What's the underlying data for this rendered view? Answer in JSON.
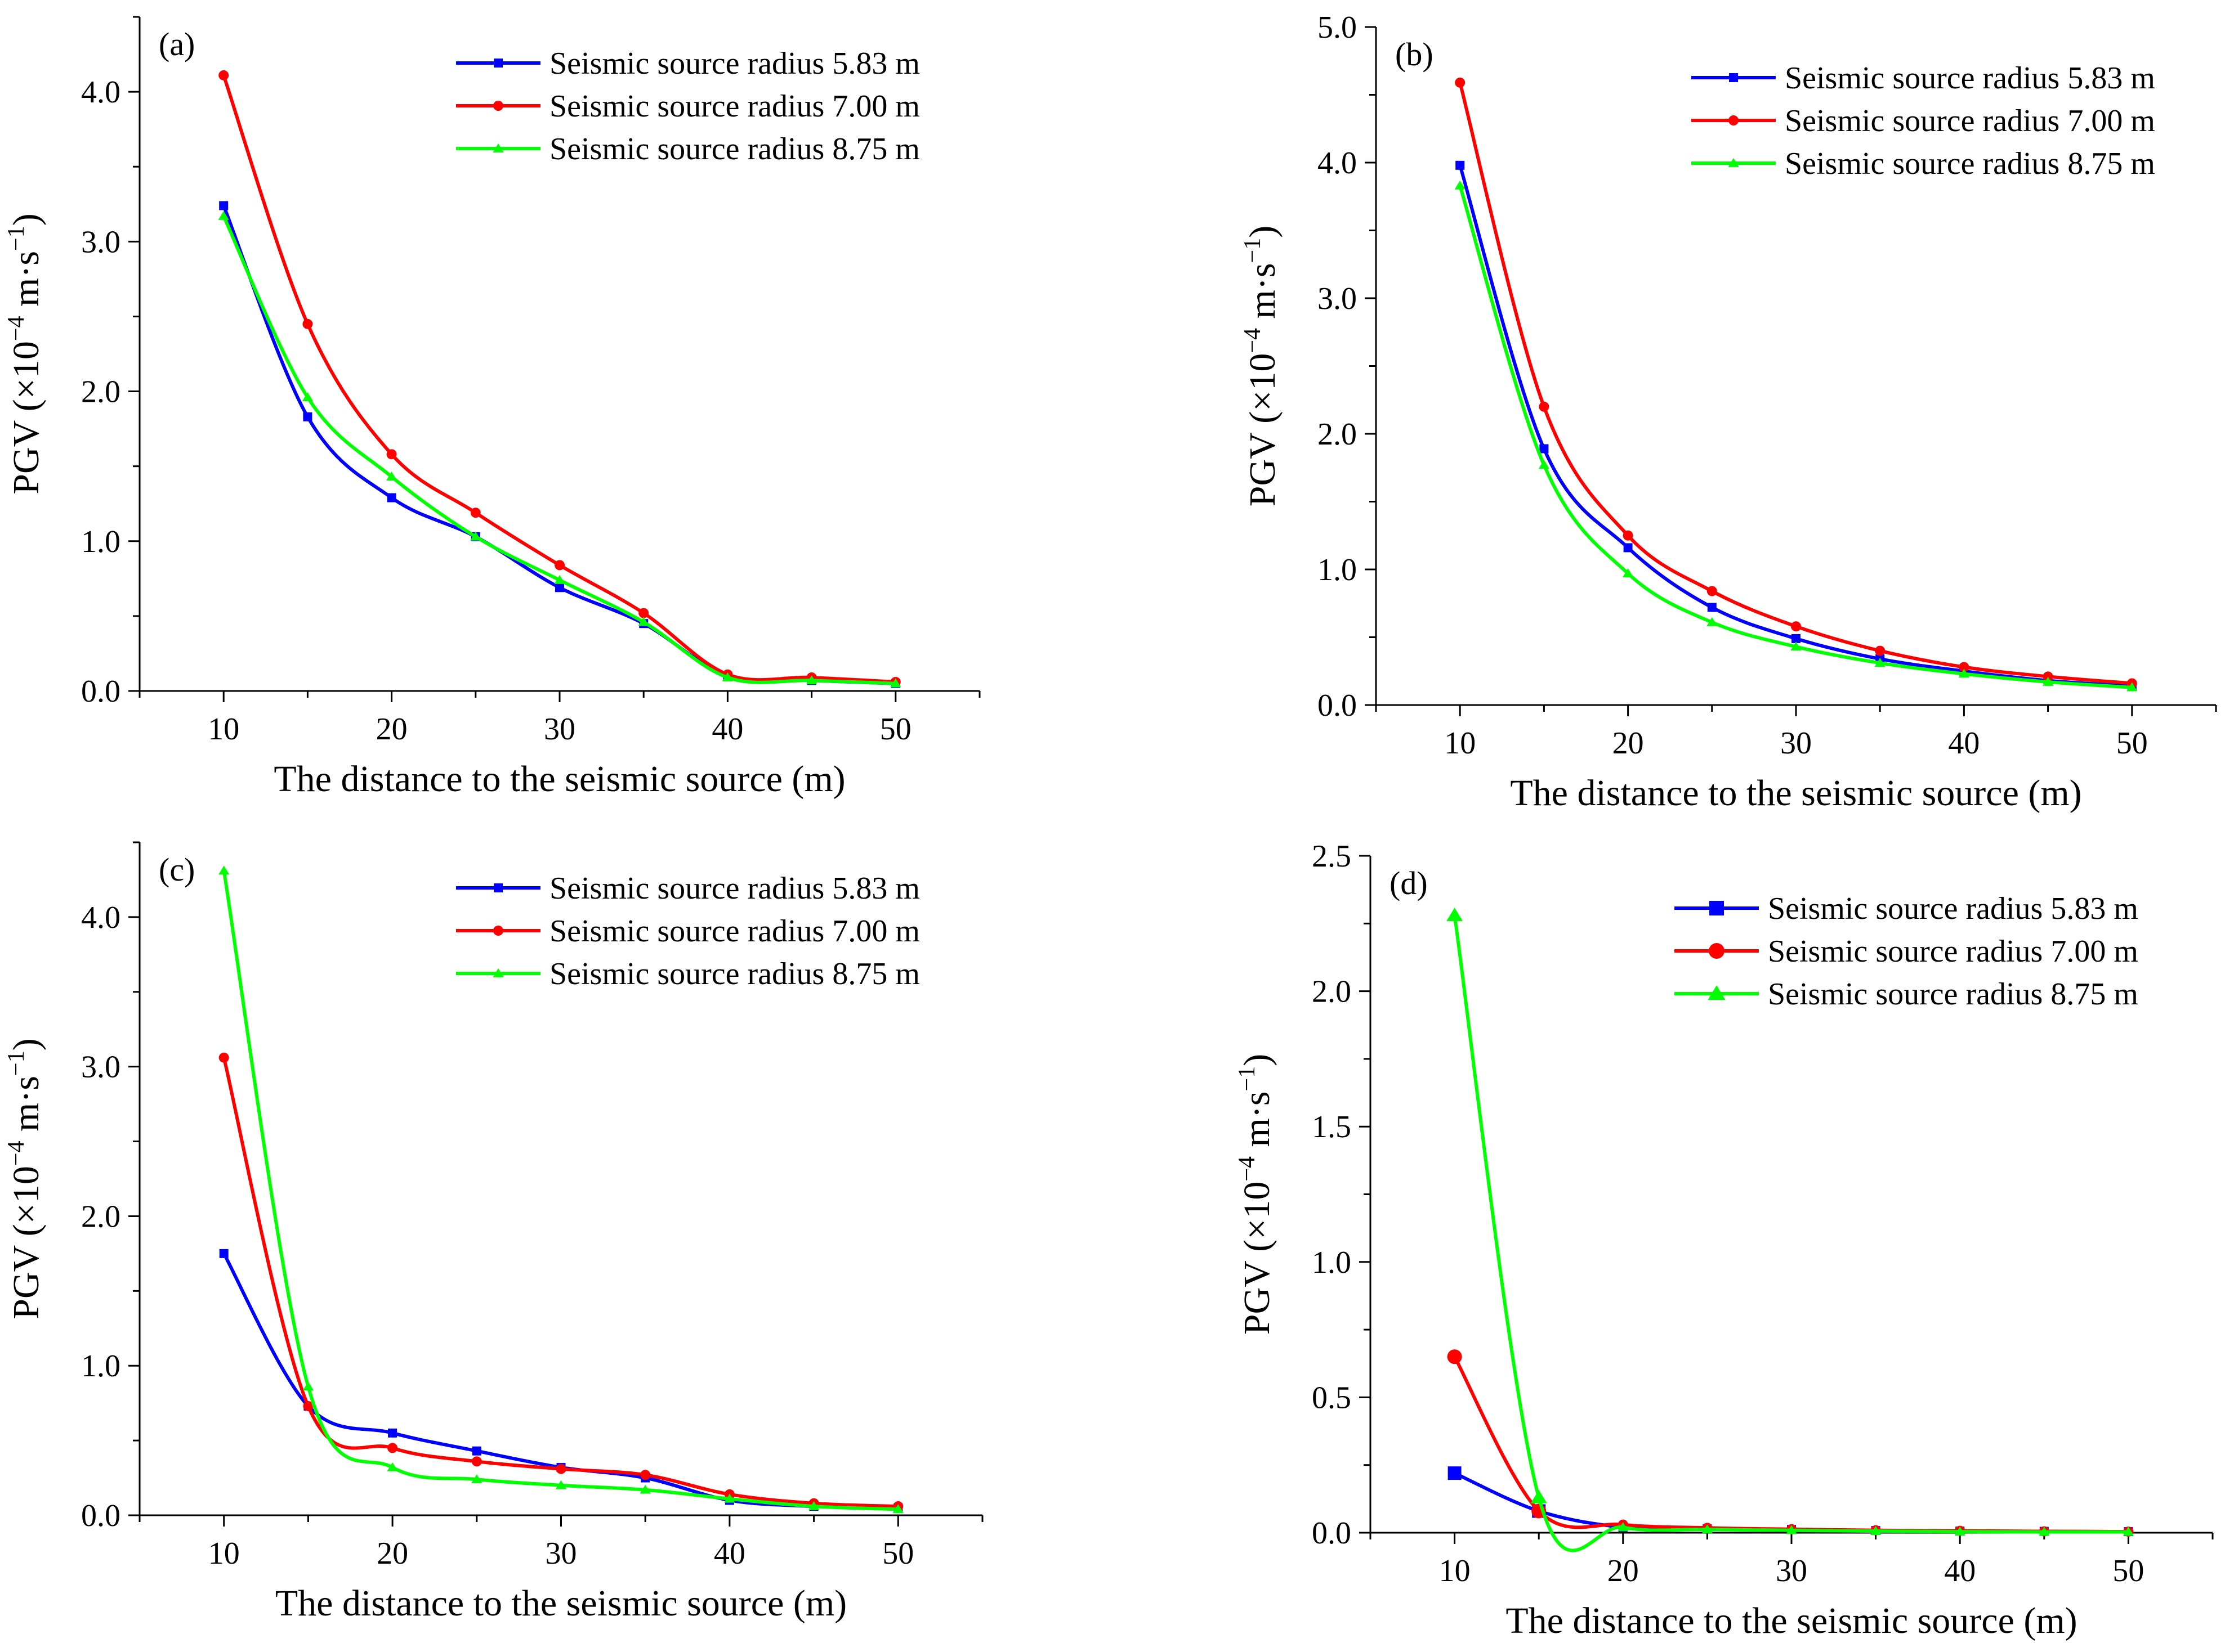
{
  "chart_data": [
    {
      "panel_label": "(a)",
      "type": "line",
      "xlabel": "The distance to the seismic source (m)",
      "ylabel": {
        "prefix": "PGV (×10",
        "exponent1": "−4",
        "middle": " m·s",
        "exponent2": "−1",
        "suffix": ")"
      },
      "xlim": [
        5,
        55
      ],
      "ylim": [
        0,
        4.5
      ],
      "xticks": [
        10,
        20,
        30,
        40,
        50
      ],
      "xtick_labels": [
        "10",
        "20",
        "30",
        "40",
        "50"
      ],
      "yticks": [
        0,
        1,
        2,
        3,
        4
      ],
      "ytick_labels": [
        "0.0",
        "1.0",
        "2.0",
        "3.0",
        "4.0"
      ],
      "x": [
        10,
        15,
        20,
        25,
        30,
        35,
        40,
        45,
        50
      ],
      "legend_position": "top-right",
      "series": [
        {
          "name": "Seismic source radius 5.83 m",
          "color": "#0000ff",
          "marker": "square",
          "values": [
            3.24,
            1.83,
            1.29,
            1.03,
            0.69,
            0.45,
            0.1,
            0.07,
            0.05
          ]
        },
        {
          "name": "Seismic source radius 7.00 m",
          "color": "#ff0000",
          "marker": "circle",
          "values": [
            4.11,
            2.45,
            1.58,
            1.19,
            0.84,
            0.52,
            0.11,
            0.09,
            0.06
          ]
        },
        {
          "name": "Seismic source radius 8.75 m",
          "color": "#00ff00",
          "marker": "triangle",
          "values": [
            3.17,
            1.96,
            1.43,
            1.03,
            0.74,
            0.46,
            0.09,
            0.07,
            0.05
          ]
        }
      ]
    },
    {
      "panel_label": "(b)",
      "type": "line",
      "xlabel": "The distance to the seismic source (m)",
      "ylabel": {
        "prefix": "PGV (×10",
        "exponent1": "−4",
        "middle": " m·s",
        "exponent2": "−1",
        "suffix": ")"
      },
      "xlim": [
        5,
        55
      ],
      "ylim": [
        0,
        5
      ],
      "xticks": [
        10,
        20,
        30,
        40,
        50
      ],
      "xtick_labels": [
        "10",
        "20",
        "30",
        "40",
        "50"
      ],
      "yticks": [
        0,
        1,
        2,
        3,
        4,
        5
      ],
      "ytick_labels": [
        "0.0",
        "1.0",
        "2.0",
        "3.0",
        "4.0",
        "5.0"
      ],
      "x": [
        10,
        15,
        20,
        25,
        30,
        35,
        40,
        45,
        50
      ],
      "legend_position": "top-right",
      "series": [
        {
          "name": "Seismic source radius 5.83 m",
          "color": "#0000ff",
          "marker": "square",
          "values": [
            3.98,
            1.89,
            1.16,
            0.72,
            0.49,
            0.34,
            0.25,
            0.18,
            0.14
          ]
        },
        {
          "name": "Seismic source radius 7.00 m",
          "color": "#ff0000",
          "marker": "circle",
          "values": [
            4.59,
            2.2,
            1.25,
            0.84,
            0.58,
            0.4,
            0.28,
            0.21,
            0.16
          ]
        },
        {
          "name": "Seismic source radius 8.75 m",
          "color": "#00ff00",
          "marker": "triangle",
          "values": [
            3.83,
            1.77,
            0.97,
            0.61,
            0.43,
            0.31,
            0.23,
            0.17,
            0.13
          ]
        }
      ]
    },
    {
      "panel_label": "(c)",
      "type": "line",
      "xlabel": "The distance to the seismic source (m)",
      "ylabel": {
        "prefix": "PGV (×10",
        "exponent1": "−4",
        "middle": " m·s",
        "exponent2": "−1",
        "suffix": ")"
      },
      "xlim": [
        5,
        55
      ],
      "ylim": [
        0,
        4.5
      ],
      "xticks": [
        10,
        20,
        30,
        40,
        50
      ],
      "xtick_labels": [
        "10",
        "20",
        "30",
        "40",
        "50"
      ],
      "yticks": [
        0,
        1,
        2,
        3,
        4
      ],
      "ytick_labels": [
        "0.0",
        "1.0",
        "2.0",
        "3.0",
        "4.0"
      ],
      "x": [
        10,
        15,
        20,
        25,
        30,
        35,
        40,
        45,
        50
      ],
      "legend_position": "top-right",
      "series": [
        {
          "name": "Seismic source radius 5.83 m",
          "color": "#0000ff",
          "marker": "square",
          "values": [
            1.75,
            0.73,
            0.55,
            0.43,
            0.32,
            0.25,
            0.1,
            0.06,
            0.05
          ]
        },
        {
          "name": "Seismic source radius 7.00 m",
          "color": "#ff0000",
          "marker": "circle",
          "values": [
            3.06,
            0.73,
            0.45,
            0.36,
            0.31,
            0.27,
            0.14,
            0.08,
            0.06
          ]
        },
        {
          "name": "Seismic source radius 8.75 m",
          "color": "#00ff00",
          "marker": "triangle",
          "values": [
            4.31,
            0.86,
            0.32,
            0.24,
            0.2,
            0.17,
            0.11,
            0.06,
            0.04
          ]
        }
      ]
    },
    {
      "panel_label": "(d)",
      "type": "line",
      "xlabel": "The distance to the seismic source (m)",
      "ylabel": {
        "prefix": "PGV (×10",
        "exponent1": "−4",
        "middle": " m·s",
        "exponent2": "−1",
        "suffix": ")"
      },
      "xlim": [
        5,
        55
      ],
      "ylim": [
        0,
        2.5
      ],
      "xticks": [
        10,
        20,
        30,
        40,
        50
      ],
      "xtick_labels": [
        "10",
        "20",
        "30",
        "40",
        "50"
      ],
      "yticks": [
        0,
        0.5,
        1,
        1.5,
        2,
        2.5
      ],
      "ytick_labels": [
        "0.0",
        "0.5",
        "1.0",
        "1.5",
        "2.0",
        "2.5"
      ],
      "x": [
        10,
        15,
        20,
        25,
        30,
        35,
        40,
        45,
        50
      ],
      "legend_position": "top-right",
      "series": [
        {
          "name": "Seismic source radius 5.83 m",
          "color": "#0000ff",
          "marker": "square",
          "values": [
            0.22,
            0.08,
            0.02,
            0.015,
            0.012,
            0.008,
            0.006,
            0.005,
            0.004
          ]
        },
        {
          "name": "Seismic source radius 7.00 m",
          "color": "#ff0000",
          "marker": "circle",
          "values": [
            0.65,
            0.08,
            0.03,
            0.018,
            0.013,
            0.009,
            0.007,
            0.005,
            0.004
          ]
        },
        {
          "name": "Seismic source radius 8.75 m",
          "color": "#00ff00",
          "marker": "triangle",
          "values": [
            2.28,
            0.13,
            0.02,
            0.012,
            0.009,
            0.006,
            0.004,
            0.003,
            0.003
          ]
        }
      ]
    }
  ]
}
